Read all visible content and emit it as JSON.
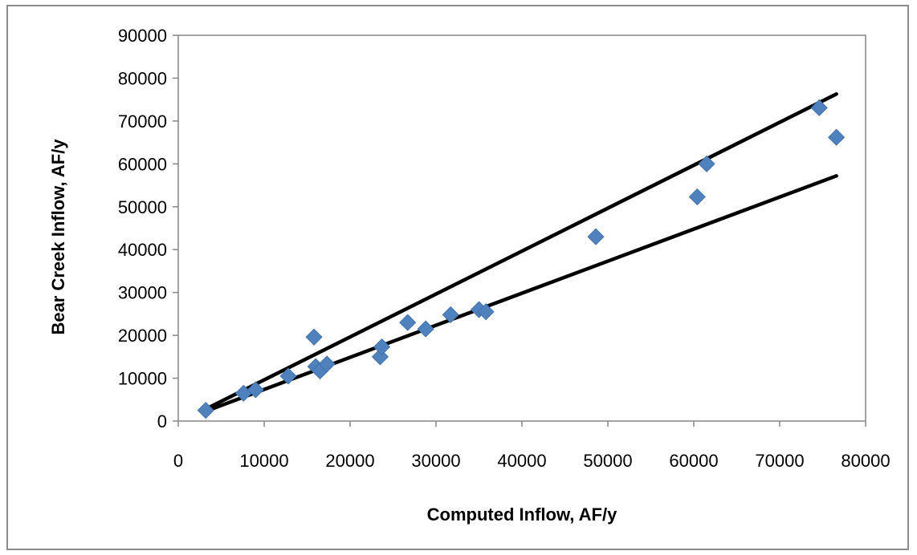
{
  "chart_data": {
    "type": "scatter",
    "title": "",
    "xlabel": "Computed Inflow, AF/y",
    "ylabel": "Bear Creek Inflow, AF/y",
    "xlim": [
      0,
      80000
    ],
    "ylim": [
      0,
      90000
    ],
    "x_ticks": [
      "0",
      "10000",
      "20000",
      "30000",
      "40000",
      "50000",
      "60000",
      "70000",
      "80000"
    ],
    "y_ticks": [
      "0",
      "10000",
      "20000",
      "30000",
      "40000",
      "50000",
      "60000",
      "70000",
      "80000",
      "90000"
    ],
    "grid": false,
    "legend": "none",
    "marker_color": "#4f81bd",
    "line_color": "#000000",
    "points": [
      {
        "x": 3200,
        "y": 2500
      },
      {
        "x": 7600,
        "y": 6500
      },
      {
        "x": 9000,
        "y": 7300
      },
      {
        "x": 12800,
        "y": 10500
      },
      {
        "x": 15800,
        "y": 19600
      },
      {
        "x": 16000,
        "y": 12700
      },
      {
        "x": 16500,
        "y": 11700
      },
      {
        "x": 17300,
        "y": 13300
      },
      {
        "x": 23500,
        "y": 15000
      },
      {
        "x": 23700,
        "y": 17300
      },
      {
        "x": 26700,
        "y": 23000
      },
      {
        "x": 28800,
        "y": 21500
      },
      {
        "x": 31700,
        "y": 24800
      },
      {
        "x": 35000,
        "y": 26000
      },
      {
        "x": 35800,
        "y": 25500
      },
      {
        "x": 48600,
        "y": 43000
      },
      {
        "x": 60400,
        "y": 52300
      },
      {
        "x": 61500,
        "y": 60000
      },
      {
        "x": 74600,
        "y": 73100
      },
      {
        "x": 76600,
        "y": 66200
      }
    ],
    "lines": [
      {
        "x": [
          3200,
          76600
        ],
        "y": [
          2800,
          76300
        ]
      },
      {
        "x": [
          3200,
          76600
        ],
        "y": [
          2300,
          57200
        ]
      }
    ]
  }
}
